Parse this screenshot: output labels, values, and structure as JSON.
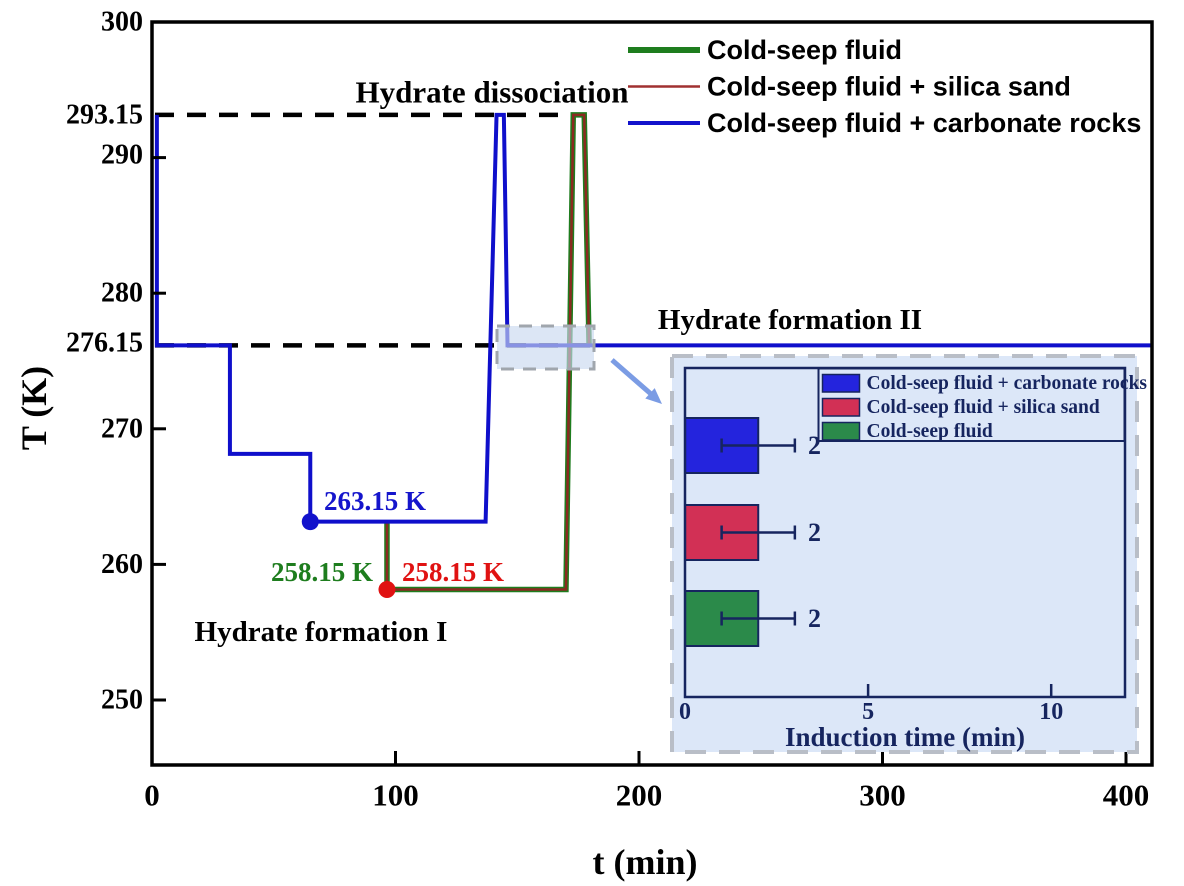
{
  "figure": {
    "background": "#ffffff"
  },
  "chart_data": [
    {
      "type": "line",
      "title": "",
      "xlabel": "t (min)",
      "ylabel": "T (K)",
      "xlim": [
        0,
        411
      ],
      "ylim": [
        245.2,
        300
      ],
      "grid": false,
      "xticks": [
        0,
        100,
        200,
        300,
        400
      ],
      "xtick_labels": [
        "0",
        "100",
        "200",
        "300",
        "400"
      ],
      "yticks": [
        300,
        293.15,
        290,
        280,
        276.15,
        270,
        260,
        250
      ],
      "ytick_labels": [
        "300",
        "293.15",
        "290",
        "280",
        "276.15",
        "270",
        "260",
        "250"
      ],
      "legend": {
        "position": "top-right",
        "items": [
          {
            "label": "Cold-seep fluid",
            "color": "#1e7d1e",
            "line_width": 6
          },
          {
            "label": "Cold-seep fluid + silica sand",
            "color": "#a03030",
            "line_width": 2.5
          },
          {
            "label": "Cold-seep fluid + carbonate rocks",
            "color": "#1212cc",
            "line_width": 4
          }
        ]
      },
      "series": [
        {
          "name": "Cold-seep fluid",
          "color": "#1e7d1e",
          "line_width": 5.5,
          "points": [
            [
              96.5,
              263.15
            ],
            [
              96.5,
              258.15
            ],
            [
              170,
              258.15
            ],
            [
              173,
              293.15
            ],
            [
              177.5,
              293.15
            ],
            [
              179.5,
              276.15
            ]
          ]
        },
        {
          "name": "Cold-seep fluid + silica sand",
          "color": "#8b2a20",
          "line_width": 2.5,
          "points": [
            [
              96.5,
              263.15
            ],
            [
              96.5,
              258.15
            ],
            [
              170,
              258.15
            ],
            [
              173,
              293.15
            ],
            [
              177.5,
              293.15
            ],
            [
              179.5,
              276.15
            ]
          ]
        },
        {
          "name": "Cold-seep fluid + carbonate rocks",
          "color": "#0f0fcb",
          "line_width": 4,
          "points": [
            [
              2,
              293.15
            ],
            [
              2,
              276.15
            ],
            [
              32,
              276.15
            ],
            [
              32,
              268.15
            ],
            [
              65,
              268.15
            ],
            [
              65,
              263.15
            ],
            [
              137,
              263.15
            ],
            [
              141.5,
              293.15
            ],
            [
              144.5,
              293.15
            ],
            [
              146,
              276.15
            ],
            [
              411,
              276.15
            ]
          ]
        }
      ],
      "markers": [
        {
          "t": 65,
          "T": 263.15,
          "color": "#1212cc",
          "series": "Cold-seep fluid + carbonate rocks"
        },
        {
          "t": 96.5,
          "T": 258.15,
          "color": "#e01212",
          "series": "Cold-seep fluid + silica sand"
        }
      ],
      "reference_lines": [
        {
          "T": 293.15,
          "style": "dashed",
          "color": "#000000",
          "t_range": [
            1,
            176
          ]
        },
        {
          "T": 276.15,
          "style": "dashed",
          "color": "#000000",
          "t_range": [
            1,
            181
          ]
        }
      ],
      "annotations": {
        "hydrate_dissociation": {
          "text": "Hydrate dissociation",
          "color": "#000000"
        },
        "hydrate_formation_2": {
          "text": "Hydrate formation II",
          "color": "#000000"
        },
        "hydrate_formation_1": {
          "text": "Hydrate formation I",
          "color": "#000000"
        },
        "temp_carbonate": {
          "text": "263.15 K",
          "color": "#1515cc"
        },
        "temp_fluid": {
          "text": "258.15 K",
          "color": "#1e7d1e"
        },
        "temp_silica": {
          "text": "258.15 K",
          "color": "#e01212"
        }
      },
      "zoom_region": {
        "t_range": [
          142,
          181
        ],
        "T": 276.15,
        "highlight_fill": "#c9d9f0",
        "highlight_border": "#a0a6ad",
        "arrow_color": "#7b9ce4"
      }
    },
    {
      "type": "bar",
      "orientation": "horizontal",
      "title": "",
      "xlabel": "Induction time (min)",
      "xlim": [
        0,
        12
      ],
      "xticks": [
        0,
        5,
        10
      ],
      "xtick_labels": [
        "0",
        "5",
        "10"
      ],
      "categories": [
        "Cold-seep fluid + carbonate rocks",
        "Cold-seep fluid + silica sand",
        "Cold-seep fluid"
      ],
      "values": [
        2,
        2,
        2
      ],
      "errors": [
        1,
        1,
        1
      ],
      "value_labels": [
        "2",
        "2",
        "2"
      ],
      "bar_colors": [
        "#2424dd",
        "#d23055",
        "#2b8a4a"
      ],
      "legend": {
        "position": "top-right",
        "items": [
          {
            "label": "Cold-seep fluid + carbonate rocks",
            "color": "#2424dd"
          },
          {
            "label": "Cold-seep fluid + silica sand",
            "color": "#d23055"
          },
          {
            "label": "Cold-seep fluid",
            "color": "#2b8a4a"
          }
        ]
      },
      "panel": {
        "bg": "#dce7f8",
        "border": "#b9bec7",
        "frame": "#16255f",
        "text_color": "#16255f"
      }
    }
  ]
}
